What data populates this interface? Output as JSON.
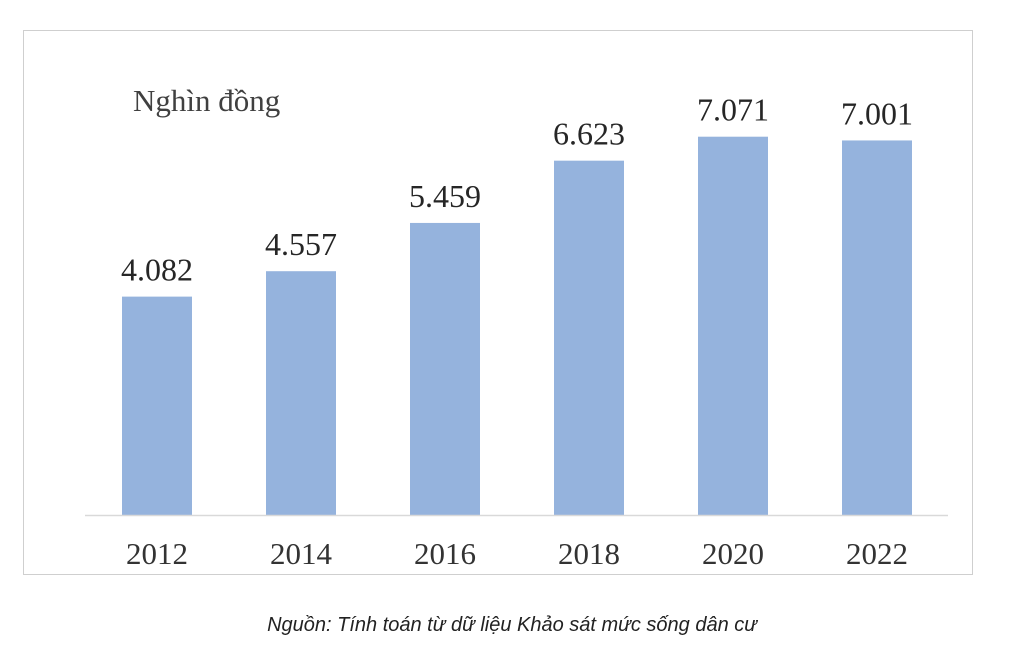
{
  "chart_data": {
    "type": "bar",
    "unit_label": "Nghìn đồng",
    "categories": [
      "2012",
      "2014",
      "2016",
      "2018",
      "2020",
      "2022"
    ],
    "values": [
      4082,
      4557,
      5459,
      6623,
      7071,
      7001
    ],
    "data_labels": [
      "4.082",
      "4.557",
      "5.459",
      "6.623",
      "7.071",
      "7.001"
    ],
    "ylim": [
      0,
      8000
    ],
    "grid": false,
    "legend": "none",
    "bar_color": "#95b3dd",
    "axis_color": "#d9d9d9"
  },
  "source_note": "Nguồn: Tính toán từ dữ liệu Khảo sát mức sống dân cư"
}
